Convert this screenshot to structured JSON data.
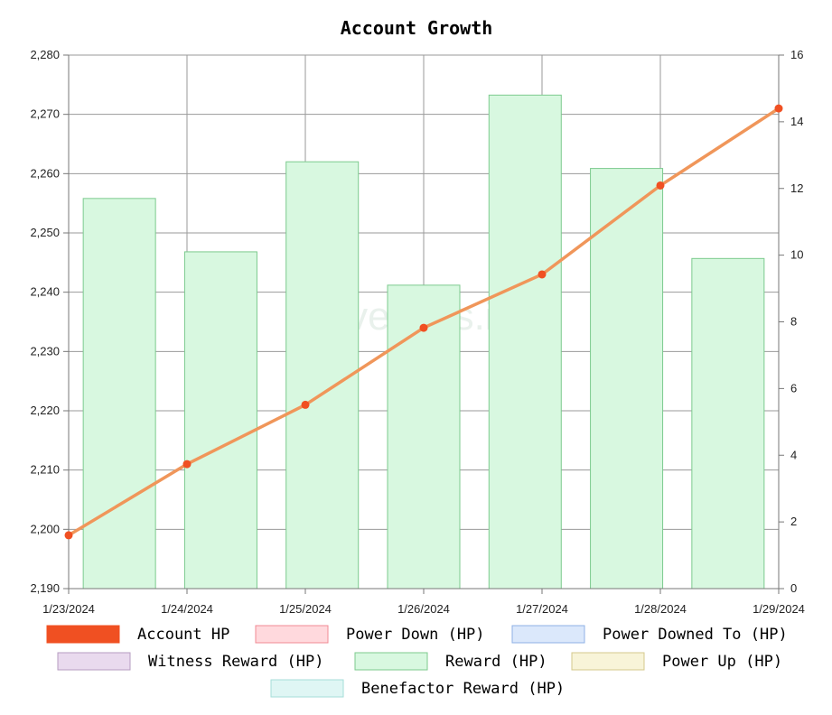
{
  "chart_data": {
    "type": "bar",
    "title": "Account Growth",
    "watermark": "hivestats.io",
    "x": [
      "1/23/2024",
      "1/24/2024",
      "1/25/2024",
      "1/26/2024",
      "1/27/2024",
      "1/28/2024",
      "1/29/2024"
    ],
    "y_left": {
      "min": 2190,
      "max": 2280,
      "ticks": [
        "2,190",
        "2,200",
        "2,210",
        "2,220",
        "2,230",
        "2,240",
        "2,250",
        "2,260",
        "2,270",
        "2,280"
      ]
    },
    "y_right": {
      "min": 0,
      "max": 16,
      "ticks": [
        "0",
        "2",
        "4",
        "6",
        "8",
        "10",
        "12",
        "14",
        "16"
      ]
    },
    "grid": true,
    "series": [
      {
        "name": "Account HP",
        "type": "line",
        "axis": "left",
        "color": "#f05022",
        "line_color": "#f0965a",
        "x": [
          "1/23/2024",
          "1/24/2024",
          "1/25/2024",
          "1/26/2024",
          "1/27/2024",
          "1/28/2024",
          "1/29/2024"
        ],
        "values": [
          2199,
          2211,
          2221,
          2234,
          2243,
          2258,
          2271
        ]
      },
      {
        "name": "Reward (HP)",
        "type": "bar",
        "axis": "right",
        "color": "#d8f8e0",
        "border": "#7cca8e",
        "categories": [
          "1/23/2024",
          "1/24/2024",
          "1/25/2024",
          "1/26/2024",
          "1/27/2024",
          "1/28/2024",
          "1/29/2024"
        ],
        "values": [
          11.7,
          10.1,
          12.8,
          9.1,
          14.8,
          12.6,
          9.9
        ]
      }
    ],
    "legend": [
      {
        "label": "Account HP",
        "fill": "#f05022",
        "stroke": "#f05022"
      },
      {
        "label": "Power Down (HP)",
        "fill": "#ffd9dd",
        "stroke": "#f08a94"
      },
      {
        "label": "Power Downed To (HP)",
        "fill": "#dbe8fb",
        "stroke": "#8fb1e6"
      },
      {
        "label": "Witness Reward (HP)",
        "fill": "#e9daee",
        "stroke": "#b69cc1"
      },
      {
        "label": "Reward (HP)",
        "fill": "#d8f8e0",
        "stroke": "#7cca8e"
      },
      {
        "label": "Power Up (HP)",
        "fill": "#f8f4d8",
        "stroke": "#d4c98c"
      },
      {
        "label": "Benefactor Reward (HP)",
        "fill": "#dff6f4",
        "stroke": "#a6ded8"
      }
    ],
    "legend_position": "bottom"
  }
}
